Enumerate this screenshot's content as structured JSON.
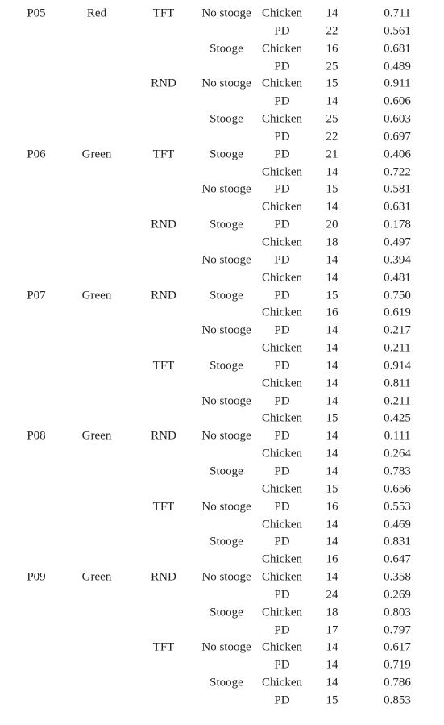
{
  "table": {
    "rows": [
      {
        "participant": "P05",
        "color": "Red",
        "strategy": "TFT",
        "condition": "No stooge",
        "game": "Chicken",
        "n": "14",
        "value": "0.711"
      },
      {
        "game": "PD",
        "n": "22",
        "value": "0.561"
      },
      {
        "condition": "Stooge",
        "game": "Chicken",
        "n": "16",
        "value": "0.681"
      },
      {
        "game": "PD",
        "n": "25",
        "value": "0.489"
      },
      {
        "strategy": "RND",
        "condition": "No stooge",
        "game": "Chicken",
        "n": "15",
        "value": "0.911"
      },
      {
        "game": "PD",
        "n": "14",
        "value": "0.606"
      },
      {
        "condition": "Stooge",
        "game": "Chicken",
        "n": "25",
        "value": "0.603"
      },
      {
        "game": "PD",
        "n": "22",
        "value": "0.697"
      },
      {
        "participant": "P06",
        "color": "Green",
        "strategy": "TFT",
        "condition": "Stooge",
        "game": "PD",
        "n": "21",
        "value": "0.406"
      },
      {
        "game": "Chicken",
        "n": "14",
        "value": "0.722"
      },
      {
        "condition": "No stooge",
        "game": "PD",
        "n": "15",
        "value": "0.581"
      },
      {
        "game": "Chicken",
        "n": "14",
        "value": "0.631"
      },
      {
        "strategy": "RND",
        "condition": "Stooge",
        "game": "PD",
        "n": "20",
        "value": "0.178"
      },
      {
        "game": "Chicken",
        "n": "18",
        "value": "0.497"
      },
      {
        "condition": "No stooge",
        "game": "PD",
        "n": "14",
        "value": "0.394"
      },
      {
        "game": "Chicken",
        "n": "14",
        "value": "0.481"
      },
      {
        "participant": "P07",
        "color": "Green",
        "strategy": "RND",
        "condition": "Stooge",
        "game": "PD",
        "n": "15",
        "value": "0.750"
      },
      {
        "game": "Chicken",
        "n": "16",
        "value": "0.619"
      },
      {
        "condition": "No stooge",
        "game": "PD",
        "n": "14",
        "value": "0.217"
      },
      {
        "game": "Chicken",
        "n": "14",
        "value": "0.211"
      },
      {
        "strategy": "TFT",
        "condition": "Stooge",
        "game": "PD",
        "n": "14",
        "value": "0.914"
      },
      {
        "game": "Chicken",
        "n": "14",
        "value": "0.811"
      },
      {
        "condition": "No stooge",
        "game": "PD",
        "n": "14",
        "value": "0.211"
      },
      {
        "game": "Chicken",
        "n": "15",
        "value": "0.425"
      },
      {
        "participant": "P08",
        "color": "Green",
        "strategy": "RND",
        "condition": "No stooge",
        "game": "PD",
        "n": "14",
        "value": "0.111"
      },
      {
        "game": "Chicken",
        "n": "14",
        "value": "0.264"
      },
      {
        "condition": "Stooge",
        "game": "PD",
        "n": "14",
        "value": "0.783"
      },
      {
        "game": "Chicken",
        "n": "15",
        "value": "0.656"
      },
      {
        "strategy": "TFT",
        "condition": "No stooge",
        "game": "PD",
        "n": "16",
        "value": "0.553"
      },
      {
        "game": "Chicken",
        "n": "14",
        "value": "0.469"
      },
      {
        "condition": "Stooge",
        "game": "PD",
        "n": "14",
        "value": "0.831"
      },
      {
        "game": "Chicken",
        "n": "16",
        "value": "0.647"
      },
      {
        "participant": "P09",
        "color": "Green",
        "strategy": "RND",
        "condition": "No stooge",
        "game": "Chicken",
        "n": "14",
        "value": "0.358"
      },
      {
        "game": "PD",
        "n": "24",
        "value": "0.269"
      },
      {
        "condition": "Stooge",
        "game": "Chicken",
        "n": "18",
        "value": "0.803"
      },
      {
        "game": "PD",
        "n": "17",
        "value": "0.797"
      },
      {
        "strategy": "TFT",
        "condition": "No stooge",
        "game": "Chicken",
        "n": "14",
        "value": "0.617"
      },
      {
        "game": "PD",
        "n": "14",
        "value": "0.719"
      },
      {
        "condition": "Stooge",
        "game": "Chicken",
        "n": "14",
        "value": "0.786"
      },
      {
        "game": "PD",
        "n": "15",
        "value": "0.853"
      }
    ]
  }
}
